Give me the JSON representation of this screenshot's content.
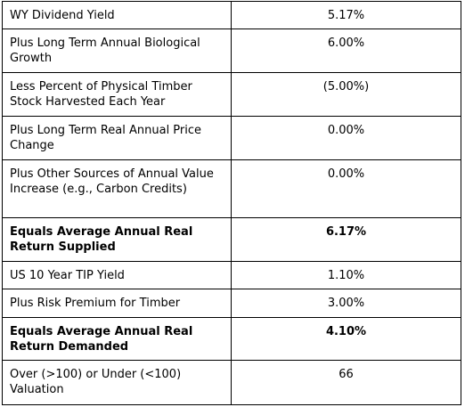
{
  "table": {
    "rows": [
      {
        "label": "WY Dividend Yield",
        "value": "5.17%",
        "bold": false
      },
      {
        "label": "Plus Long Term Annual Biological Growth",
        "value": "6.00%",
        "bold": false
      },
      {
        "label": "Less Percent of Physical Timber Stock Harvested Each Year",
        "value": "(5.00%)",
        "bold": false
      },
      {
        "label": "Plus Long Term Real Annual Price Change",
        "value": "0.00%",
        "bold": false
      },
      {
        "label": "Plus Other Sources of Annual Value Increase (e.g., Carbon Credits)",
        "value": "0.00%",
        "bold": false
      },
      {
        "label": "Equals Average Annual Real Return Supplied",
        "value": "6.17%",
        "bold": true
      },
      {
        "label": "US 10 Year TIP Yield",
        "value": "1.10%",
        "bold": false
      },
      {
        "label": "Plus Risk Premium for Timber",
        "value": "3.00%",
        "bold": false
      },
      {
        "label": "Equals Average Annual Real Return Demanded",
        "value": "4.10%",
        "bold": true
      },
      {
        "label": "Over (>100) or Under (<100) Valuation",
        "value": "66",
        "bold": false
      }
    ]
  }
}
